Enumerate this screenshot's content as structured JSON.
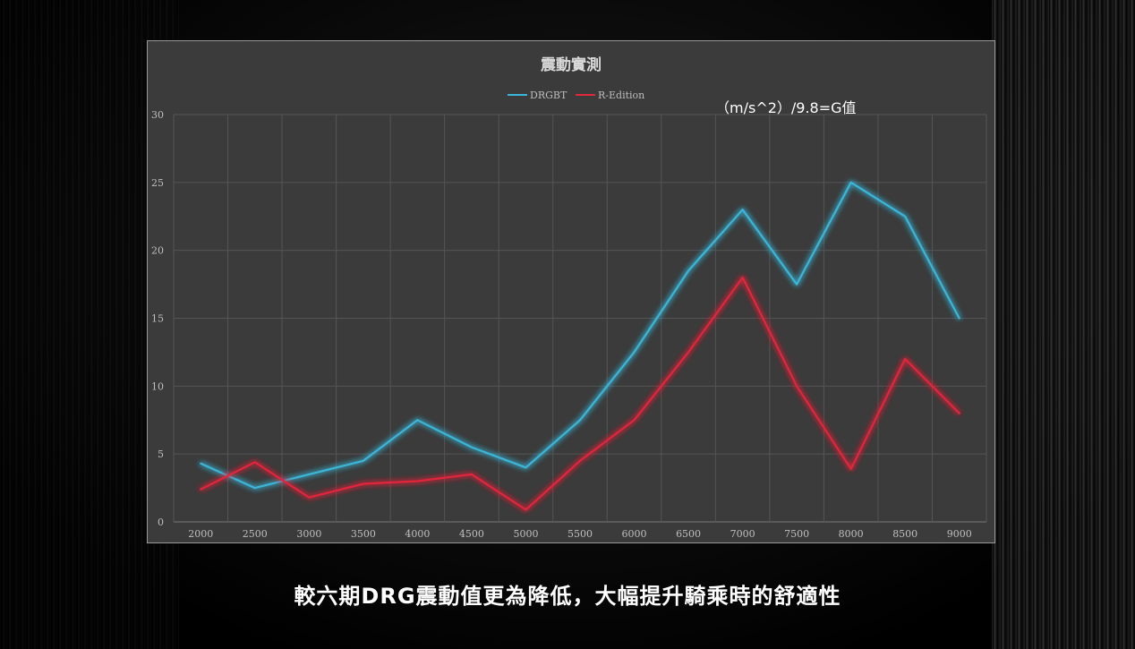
{
  "caption": "較六期DRG震動值更為降低，大幅提升騎乘時的舒適性",
  "chart_data": {
    "type": "line",
    "title": "震動實測",
    "annotation": "（m/s^2）/9.8=G值",
    "xlabel": "",
    "ylabel": "",
    "categories": [
      "2000",
      "2500",
      "3000",
      "3500",
      "4000",
      "4500",
      "5000",
      "5500",
      "6000",
      "6500",
      "7000",
      "7500",
      "8000",
      "8500",
      "9000"
    ],
    "series": [
      {
        "name": "DRGBT",
        "color": "#3bb6d8",
        "values": [
          4.3,
          2.5,
          3.5,
          4.5,
          7.5,
          5.5,
          4.0,
          7.5,
          12.5,
          18.5,
          23.0,
          17.5,
          25.0,
          22.5,
          15.0
        ]
      },
      {
        "name": "R-Edition",
        "color": "#e0283a",
        "values": [
          2.4,
          4.4,
          1.8,
          2.8,
          3.0,
          3.5,
          0.9,
          4.5,
          7.5,
          12.5,
          18.0,
          10.0,
          3.9,
          12.0,
          8.0
        ]
      }
    ],
    "yticks": [
      0,
      5,
      10,
      15,
      20,
      25,
      30
    ],
    "ylim": [
      0,
      30
    ],
    "grid": true,
    "legend_position": "top-center"
  }
}
